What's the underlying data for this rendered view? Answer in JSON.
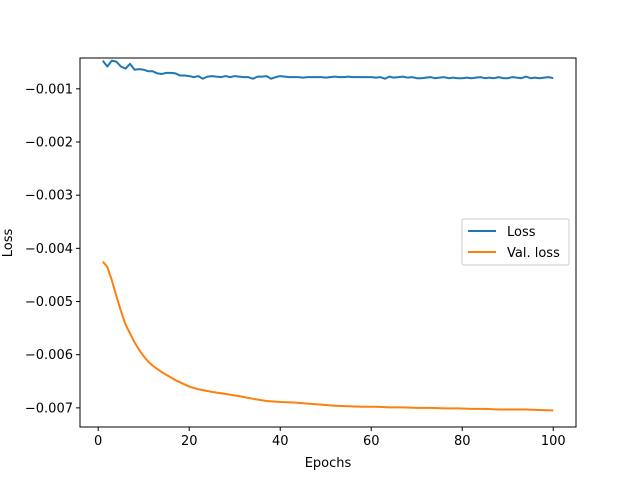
{
  "chart_data": {
    "type": "line",
    "title": "",
    "xlabel": "Epochs",
    "ylabel": "Loss",
    "xlim": [
      -4,
      105
    ],
    "ylim": [
      -0.00736,
      -0.00042
    ],
    "xticks": [
      0,
      20,
      40,
      60,
      80,
      100
    ],
    "xtick_labels": [
      "0",
      "20",
      "40",
      "60",
      "80",
      "100"
    ],
    "yticks": [
      -0.001,
      -0.002,
      -0.003,
      -0.004,
      -0.005,
      -0.006,
      -0.007
    ],
    "ytick_labels": [
      "−0.001",
      "−0.002",
      "−0.003",
      "−0.004",
      "−0.005",
      "−0.006",
      "−0.007"
    ],
    "grid": false,
    "legend_position": "center-right",
    "series": [
      {
        "name": "Loss",
        "color": "#1f77b4",
        "x": [
          1,
          2,
          3,
          4,
          5,
          6,
          7,
          8,
          9,
          10,
          11,
          12,
          13,
          14,
          15,
          16,
          17,
          18,
          19,
          20,
          21,
          22,
          23,
          24,
          25,
          26,
          27,
          28,
          29,
          30,
          31,
          32,
          33,
          34,
          35,
          36,
          37,
          38,
          39,
          40,
          41,
          42,
          43,
          44,
          45,
          46,
          47,
          48,
          49,
          50,
          51,
          52,
          53,
          54,
          55,
          56,
          57,
          58,
          59,
          60,
          61,
          62,
          63,
          64,
          65,
          66,
          67,
          68,
          69,
          70,
          71,
          72,
          73,
          74,
          75,
          76,
          77,
          78,
          79,
          80,
          81,
          82,
          83,
          84,
          85,
          86,
          87,
          88,
          89,
          90,
          91,
          92,
          93,
          94,
          95,
          96,
          97,
          98,
          99,
          100
        ],
        "values": [
          -0.00047,
          -0.00058,
          -0.00047,
          -0.00049,
          -0.00058,
          -0.00062,
          -0.00053,
          -0.00064,
          -0.00063,
          -0.00064,
          -0.00067,
          -0.00067,
          -0.00071,
          -0.00072,
          -0.0007,
          -0.0007,
          -0.00071,
          -0.00075,
          -0.00075,
          -0.00076,
          -0.00078,
          -0.00076,
          -0.00081,
          -0.00077,
          -0.00076,
          -0.00077,
          -0.00078,
          -0.00076,
          -0.00078,
          -0.00076,
          -0.00077,
          -0.00078,
          -0.00078,
          -0.00081,
          -0.00077,
          -0.00077,
          -0.00076,
          -0.00081,
          -0.00078,
          -0.00076,
          -0.00077,
          -0.00078,
          -0.00078,
          -0.00078,
          -0.00079,
          -0.00078,
          -0.00078,
          -0.00078,
          -0.00078,
          -0.00079,
          -0.00078,
          -0.00077,
          -0.00078,
          -0.00078,
          -0.00077,
          -0.00078,
          -0.00078,
          -0.00078,
          -0.00078,
          -0.00078,
          -0.00079,
          -0.00078,
          -0.00081,
          -0.00077,
          -0.00079,
          -0.00078,
          -0.00077,
          -0.00079,
          -0.00078,
          -0.0008,
          -0.0008,
          -0.00079,
          -0.00078,
          -0.0008,
          -0.00079,
          -0.00078,
          -0.0008,
          -0.00079,
          -0.0008,
          -0.0008,
          -0.00079,
          -0.0008,
          -0.00079,
          -0.00078,
          -0.0008,
          -0.00079,
          -0.0008,
          -0.00078,
          -0.0008,
          -0.0008,
          -0.00078,
          -0.00079,
          -0.0008,
          -0.00077,
          -0.0008,
          -0.00079,
          -0.0008,
          -0.00079,
          -0.00078,
          -0.0008
        ]
      },
      {
        "name": "Val. loss",
        "color": "#ff7f0e",
        "x": [
          1,
          2,
          3,
          4,
          5,
          6,
          7,
          8,
          9,
          10,
          11,
          12,
          13,
          14,
          15,
          16,
          17,
          18,
          19,
          20,
          22,
          25,
          28,
          31,
          34,
          37,
          40,
          43,
          46,
          49,
          52,
          55,
          58,
          61,
          64,
          67,
          70,
          73,
          76,
          79,
          82,
          85,
          88,
          91,
          94,
          97,
          100
        ],
        "values": [
          -0.00425,
          -0.00435,
          -0.0046,
          -0.0049,
          -0.00518,
          -0.00543,
          -0.0056,
          -0.00577,
          -0.00591,
          -0.00603,
          -0.00613,
          -0.00621,
          -0.00627,
          -0.00633,
          -0.00638,
          -0.00643,
          -0.00648,
          -0.00652,
          -0.00656,
          -0.0066,
          -0.00665,
          -0.0067,
          -0.00674,
          -0.00678,
          -0.00683,
          -0.00687,
          -0.00689,
          -0.0069,
          -0.00692,
          -0.00694,
          -0.00696,
          -0.00697,
          -0.00698,
          -0.00698,
          -0.00699,
          -0.00699,
          -0.007,
          -0.007,
          -0.00701,
          -0.00701,
          -0.00702,
          -0.00702,
          -0.00703,
          -0.00703,
          -0.00703,
          -0.00704,
          -0.00705
        ]
      }
    ]
  }
}
